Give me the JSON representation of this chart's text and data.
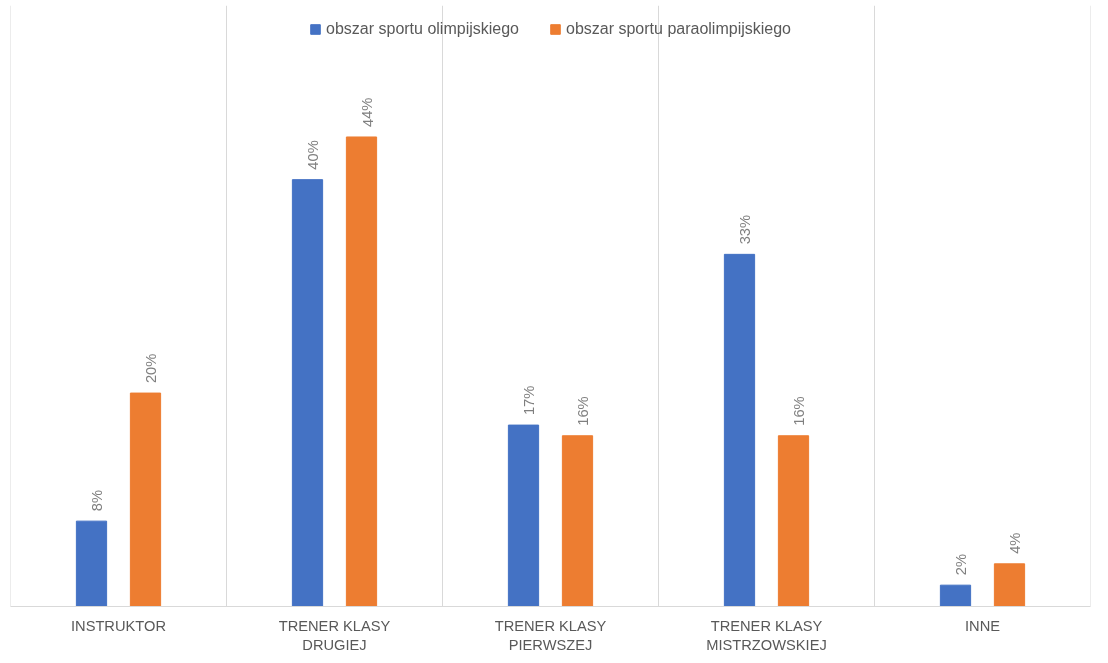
{
  "chart_data": {
    "type": "bar",
    "categories": [
      "INSTRUKTOR",
      "TRENER KLASY DRUGIEJ",
      "TRENER KLASY PIERWSZEJ",
      "TRENER KLASY MISTRZOWSKIEJ",
      "INNE"
    ],
    "series": [
      {
        "name": "obszar sportu olimpijskiego",
        "color": "#4472c4",
        "values": [
          8,
          40,
          17,
          33,
          2
        ],
        "value_labels": [
          "8%",
          "40%",
          "17%",
          "33%",
          "2%"
        ]
      },
      {
        "name": "obszar sportu paraolimpijskiego",
        "color": "#ed7d31",
        "values": [
          20,
          44,
          16,
          16,
          4
        ],
        "value_labels": [
          "20%",
          "44%",
          "16%",
          "16%",
          "4%"
        ]
      }
    ],
    "tick_labels": "x",
    "grid": "x",
    "legend": "top"
  }
}
